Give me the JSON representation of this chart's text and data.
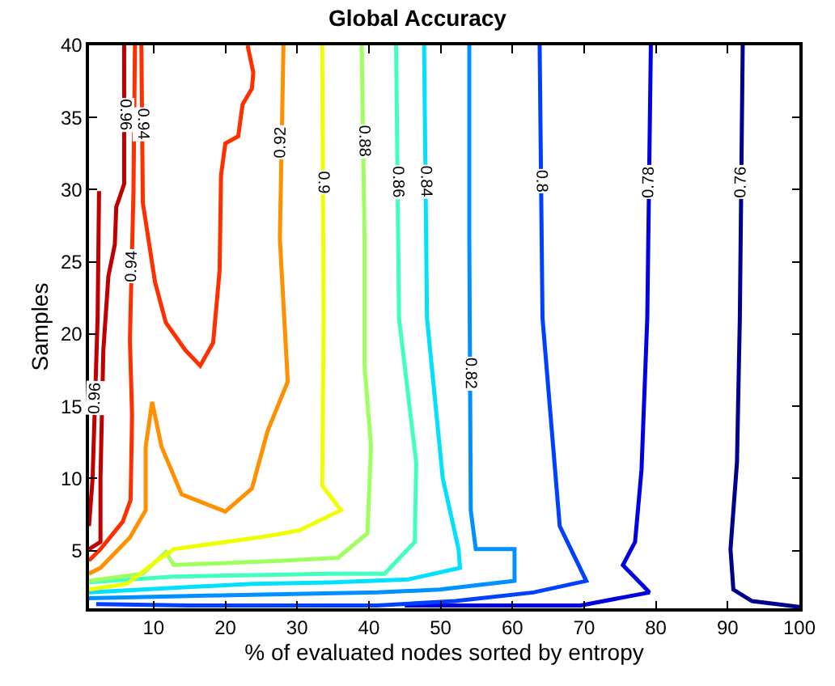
{
  "chart_data": {
    "type": "line",
    "title": "Global Accuracy",
    "xlabel": "% of evaluated nodes sorted by entropy",
    "ylabel": "Samples",
    "xlim": [
      1,
      100
    ],
    "ylim": [
      1,
      40
    ],
    "xticks": [
      10,
      20,
      30,
      40,
      50,
      60,
      70,
      80,
      90,
      100
    ],
    "yticks": [
      5,
      10,
      15,
      20,
      25,
      30,
      35,
      40
    ],
    "grid": false,
    "legend": false,
    "series": [
      {
        "name": "0.76",
        "color": "#00008f",
        "x": [
          92.1,
          91.7,
          91.3,
          90.4,
          90.8,
          93.4,
          100
        ],
        "values": [
          40,
          21.1,
          11.1,
          5.1,
          2.3,
          1.5,
          1.1
        ]
      },
      {
        "name": "0.78",
        "color": "#0000e0",
        "x": [
          79.3,
          78.8,
          78,
          77.1,
          75.4,
          79.1,
          69.5,
          45
        ],
        "values": [
          40,
          21.1,
          10.6,
          5.6,
          4,
          2.1,
          1.2,
          1.2
        ]
      },
      {
        "name": "0.8",
        "color": "#0040ff",
        "x": [
          63.8,
          64.2,
          66.6,
          70.3,
          62.9,
          52,
          41.2,
          15,
          2
        ],
        "values": [
          40,
          21.1,
          6.7,
          2.9,
          2.1,
          1.5,
          1.2,
          1.2,
          1.3
        ]
      },
      {
        "name": "0.82",
        "color": "#0090ff",
        "x": [
          54,
          54,
          54.2,
          54.9,
          60.3,
          60.3,
          49.9,
          41.2,
          19.4,
          1
        ],
        "values": [
          40,
          26.6,
          7.8,
          5.1,
          5.1,
          2.9,
          2.3,
          2.1,
          1.9,
          1.7
        ]
      },
      {
        "name": "0.84",
        "color": "#00e0ff",
        "x": [
          47.7,
          48.1,
          50.3,
          52.5,
          52.7,
          45.5,
          34.6,
          23.7,
          1
        ],
        "values": [
          40,
          21.1,
          10,
          5.1,
          3.8,
          3,
          2.8,
          2.7,
          2.1
        ]
      },
      {
        "name": "0.86",
        "color": "#40ffbf",
        "x": [
          43.8,
          44.2,
          46.6,
          46.4,
          42.2,
          34.6,
          12.8,
          1
        ],
        "values": [
          40,
          21.1,
          11.1,
          5.6,
          3.4,
          3.4,
          3.2,
          2.8
        ]
      },
      {
        "name": "0.88",
        "color": "#a0ff60",
        "x": [
          39,
          39.4,
          39.4,
          40.3,
          39.8,
          35.7,
          28.1,
          12.8,
          11.7,
          8.5,
          1
        ],
        "values": [
          40,
          26.6,
          17.8,
          12.2,
          6.2,
          4.5,
          4.3,
          4,
          4.9,
          3.4,
          2.9
        ]
      },
      {
        "name": "0.9",
        "color": "#f0ff00",
        "x": [
          33.5,
          33.7,
          33.5,
          36.1,
          30.3,
          25.9,
          12.8,
          10.2,
          6.3,
          1
        ],
        "values": [
          40,
          21.1,
          9.5,
          7.8,
          6.4,
          6,
          5.1,
          4.2,
          2.7,
          2.3
        ]
      },
      {
        "name": "0.92",
        "color": "#ff9000",
        "x": [
          28.1,
          27.6,
          28.7,
          25.9,
          23.7,
          20,
          13.9,
          11.1,
          9.8,
          8.9,
          8.9,
          6.7,
          2.6,
          1
        ],
        "values": [
          40,
          26.6,
          16.7,
          13.3,
          9.3,
          7.7,
          8.9,
          12.2,
          15.3,
          12.2,
          7.8,
          5.9,
          3.8,
          3.4
        ]
      },
      {
        "name": "0.94",
        "color": "#ff3000",
        "x": [
          8.3,
          8.5,
          10.2,
          11.7,
          14.4,
          16.5,
          18.3,
          19.2,
          19.4,
          20,
          21.8,
          22.4,
          23.7,
          23.9,
          23.1
        ],
        "values": [
          40,
          29.1,
          23.6,
          20.8,
          18.9,
          17.8,
          19.4,
          24.4,
          31,
          33.2,
          33.7,
          35.9,
          37,
          38.1,
          40
        ]
      },
      {
        "name": "0.94",
        "color": "#ff3000",
        "x": [
          7.4,
          7.2,
          6.7,
          7,
          6.8,
          5.7,
          2.6,
          1
        ],
        "values": [
          40,
          29.9,
          19.6,
          14.4,
          8.5,
          7,
          5.1,
          4.3
        ]
      },
      {
        "name": "0.96",
        "color": "#c00000",
        "x": [
          5.9,
          5.9,
          4.8,
          4.6,
          3.7,
          3,
          2.6,
          2.6,
          1
        ],
        "values": [
          40,
          30.4,
          28.8,
          26.2,
          24,
          18.9,
          10,
          5.6,
          5.1
        ]
      },
      {
        "name": "0.96",
        "color": "#c00000",
        "x": [
          2.4,
          2.2,
          1.5,
          1
        ],
        "values": [
          29.9,
          21.1,
          10,
          6.7
        ]
      }
    ]
  }
}
